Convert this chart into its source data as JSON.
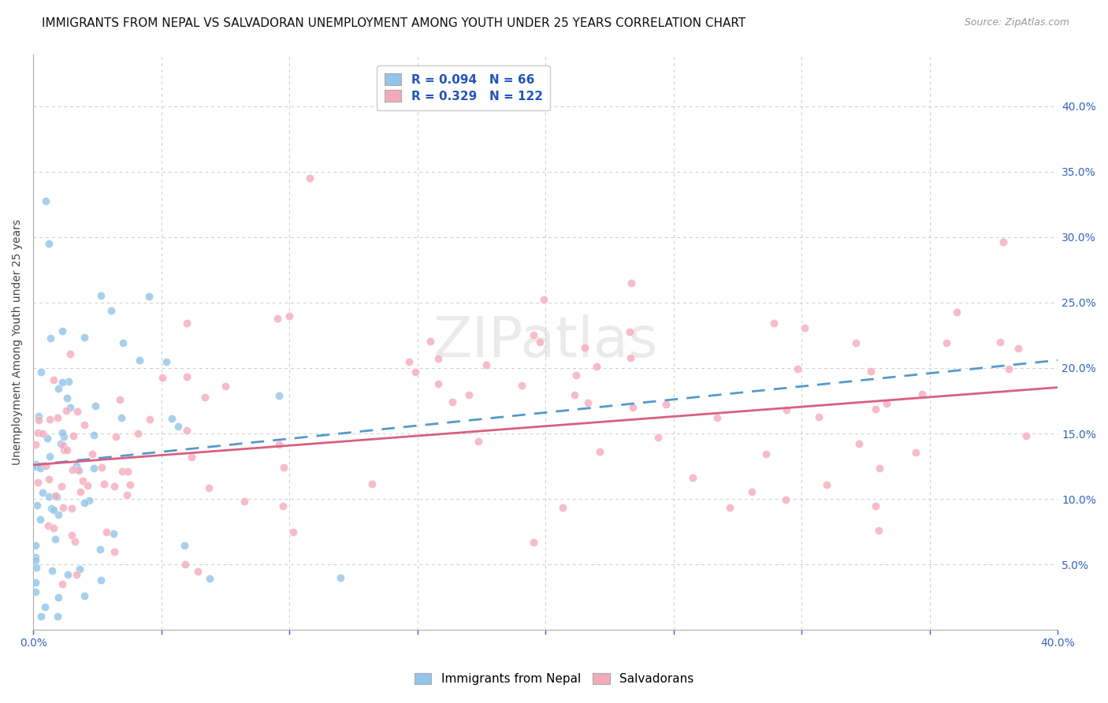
{
  "title": "IMMIGRANTS FROM NEPAL VS SALVADORAN UNEMPLOYMENT AMONG YOUTH UNDER 25 YEARS CORRELATION CHART",
  "source": "Source: ZipAtlas.com",
  "ylabel": "Unemployment Among Youth under 25 years",
  "xlim": [
    0.0,
    0.4
  ],
  "ylim": [
    0.0,
    0.44
  ],
  "xtick_vals": [
    0.0,
    0.05,
    0.1,
    0.15,
    0.2,
    0.25,
    0.3,
    0.35,
    0.4
  ],
  "xticklabels": [
    "0.0%",
    "",
    "",
    "",
    "",
    "",
    "",
    "",
    "40.0%"
  ],
  "ytick_vals": [
    0.05,
    0.1,
    0.15,
    0.2,
    0.25,
    0.3,
    0.35,
    0.4
  ],
  "ytick_labels": [
    "5.0%",
    "10.0%",
    "15.0%",
    "20.0%",
    "25.0%",
    "30.0%",
    "35.0%",
    "40.0%"
  ],
  "nepal_color": "#92C5E8",
  "salvador_color": "#F5AABC",
  "nepal_R": 0.094,
  "nepal_N": 66,
  "salvador_R": 0.329,
  "salvador_N": 122,
  "nepal_trend_color": "#5599CC",
  "salvador_trend_color": "#D96080",
  "background_color": "#ffffff",
  "grid_color": "#cccccc",
  "title_fontsize": 11,
  "axis_label_fontsize": 10,
  "tick_fontsize": 10,
  "legend_fontsize": 11,
  "watermark": "ZIPatlas"
}
